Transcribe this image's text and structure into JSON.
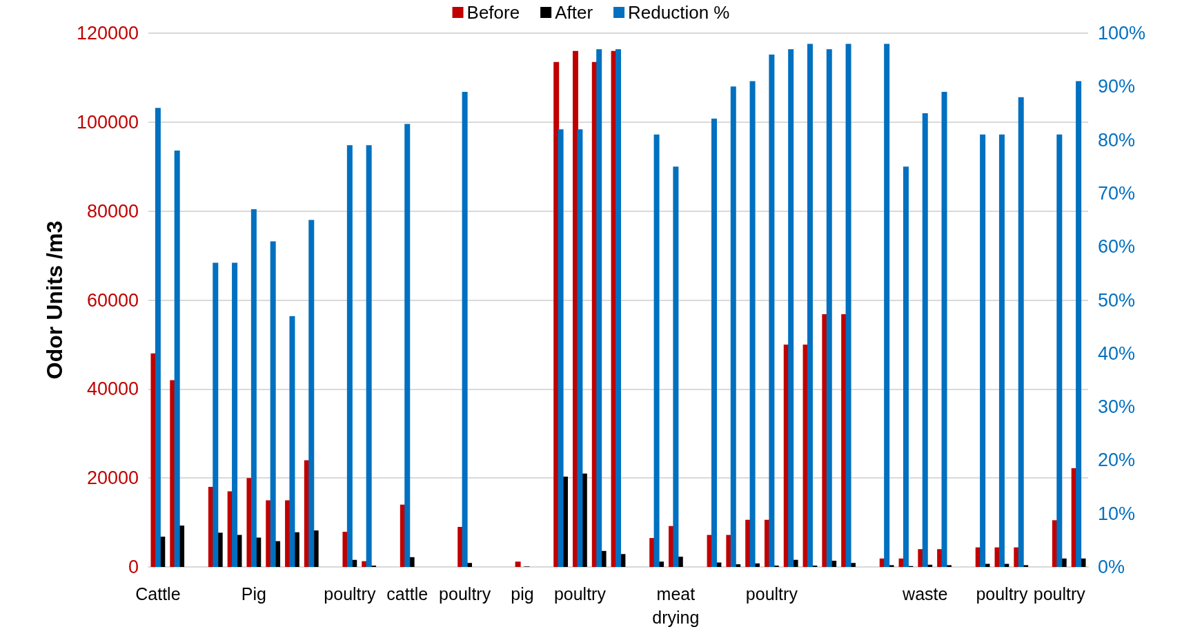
{
  "chart_data": {
    "type": "bar",
    "ylabel": "Odor Units /m3",
    "categories": [
      "Cattle",
      null,
      null,
      null,
      null,
      "Pig",
      null,
      null,
      null,
      null,
      "poultry",
      null,
      null,
      "cattle",
      null,
      null,
      "poultry",
      null,
      null,
      "pig",
      null,
      null,
      "poultry",
      null,
      null,
      null,
      null,
      "meat drying",
      null,
      null,
      null,
      null,
      "poultry",
      null,
      null,
      null,
      null,
      null,
      null,
      null,
      "waste",
      null,
      null,
      null,
      "poultry",
      null,
      null,
      "poultry",
      null
    ],
    "series": [
      {
        "name": "Before",
        "color": "#c00000",
        "values": [
          48000,
          42000,
          null,
          18000,
          17000,
          20000,
          15000,
          15000,
          24000,
          null,
          7900,
          1300,
          null,
          14000,
          null,
          null,
          9000,
          null,
          null,
          1200,
          null,
          113500,
          116000,
          113500,
          116000,
          null,
          6500,
          9200,
          null,
          7200,
          7200,
          10600,
          10600,
          50000,
          50000,
          56800,
          56800,
          null,
          1900,
          1900,
          4000,
          4000,
          null,
          4400,
          4400,
          4400,
          null,
          10500,
          22200
        ]
      },
      {
        "name": "After",
        "color": "#000000",
        "values": [
          6800,
          9300,
          null,
          7700,
          7200,
          6600,
          5800,
          7800,
          8200,
          null,
          1600,
          300,
          null,
          2200,
          null,
          null,
          900,
          null,
          null,
          100,
          null,
          20300,
          21000,
          3600,
          2900,
          null,
          1200,
          2300,
          null,
          1000,
          600,
          800,
          300,
          1600,
          300,
          1400,
          900,
          null,
          400,
          200,
          500,
          400,
          null,
          700,
          700,
          400,
          null,
          1900,
          1900
        ]
      },
      {
        "name": "Reduction %",
        "color": "#0070c0",
        "axis": "y2",
        "values": [
          86,
          78,
          null,
          57,
          57,
          67,
          61,
          47,
          65,
          null,
          79,
          79,
          null,
          83,
          null,
          null,
          89,
          null,
          null,
          null,
          null,
          82,
          82,
          97,
          97,
          null,
          81,
          75,
          null,
          84,
          90,
          91,
          96,
          97,
          98,
          97,
          98,
          null,
          98,
          75,
          85,
          89,
          null,
          81,
          81,
          88,
          null,
          81,
          91
        ]
      }
    ],
    "ylim": [
      0,
      120000
    ],
    "yticks": [
      0,
      20000,
      40000,
      60000,
      80000,
      100000,
      120000
    ],
    "y2lim": [
      0,
      100
    ],
    "y2ticks": [
      {
        "value": 0,
        "label": "0%"
      },
      {
        "value": 10,
        "label": "10%"
      },
      {
        "value": 20,
        "label": "20%"
      },
      {
        "value": 30,
        "label": "30%"
      },
      {
        "value": 40,
        "label": "40%"
      },
      {
        "value": 50,
        "label": "50%"
      },
      {
        "value": 60,
        "label": "60%"
      },
      {
        "value": 70,
        "label": "70%"
      },
      {
        "value": 80,
        "label": "80%"
      },
      {
        "value": 90,
        "label": "90%"
      },
      {
        "value": 100,
        "label": "100%"
      }
    ],
    "grid": "y",
    "legend": "top"
  }
}
